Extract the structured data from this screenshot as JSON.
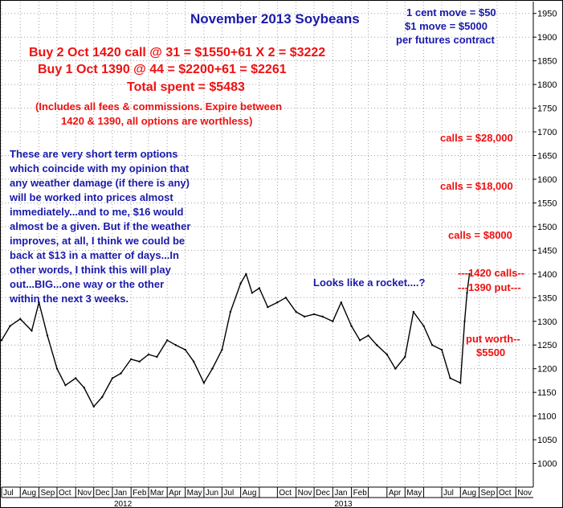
{
  "chart_data": {
    "type": "line",
    "title": "November 2013 Soybeans",
    "ylim": [
      950,
      1975
    ],
    "y_ticks": [
      1000,
      1050,
      1100,
      1150,
      1200,
      1250,
      1300,
      1350,
      1400,
      1450,
      1500,
      1550,
      1600,
      1650,
      1700,
      1750,
      1800,
      1850,
      1900,
      1950
    ],
    "x_months": [
      "Jul",
      "Aug",
      "Sep",
      "Oct",
      "Nov",
      "Dec",
      "Jan",
      "Feb",
      "Mar",
      "Apr",
      "May",
      "Jun",
      "Jul",
      "Aug",
      "Oct",
      "Nov",
      "Dec",
      "Jan",
      "Feb",
      "Apr",
      "May",
      "Jul",
      "Aug",
      "Sep",
      "Oct",
      "Nov"
    ],
    "x_years": [
      "2012",
      "2013"
    ],
    "grid": true,
    "series": [
      {
        "color": "#000000",
        "x": [
          "2011-07-01",
          "2011-07-15",
          "2011-08-01",
          "2011-08-20",
          "2011-09-01",
          "2011-09-15",
          "2011-10-01",
          "2011-10-15",
          "2011-11-01",
          "2011-11-15",
          "2011-12-01",
          "2011-12-15",
          "2012-01-01",
          "2012-01-15",
          "2012-02-01",
          "2012-02-15",
          "2012-03-01",
          "2012-03-15",
          "2012-04-01",
          "2012-04-15",
          "2012-05-01",
          "2012-05-15",
          "2012-06-01",
          "2012-06-15",
          "2012-07-01",
          "2012-07-15",
          "2012-08-01",
          "2012-08-10",
          "2012-08-20",
          "2012-09-01",
          "2012-09-15",
          "2012-10-01",
          "2012-10-15",
          "2012-11-01",
          "2012-11-15",
          "2012-12-01",
          "2012-12-15",
          "2013-01-01",
          "2013-01-15",
          "2013-02-01",
          "2013-02-15",
          "2013-03-01",
          "2013-03-15",
          "2013-04-01",
          "2013-04-15",
          "2013-05-01",
          "2013-05-15",
          "2013-06-01",
          "2013-06-15",
          "2013-07-01",
          "2013-07-15",
          "2013-08-01",
          "2013-08-08",
          "2013-08-12",
          "2013-08-16"
        ],
        "y": [
          1260,
          1290,
          1305,
          1280,
          1340,
          1270,
          1200,
          1165,
          1180,
          1160,
          1120,
          1140,
          1180,
          1190,
          1220,
          1215,
          1230,
          1225,
          1260,
          1250,
          1240,
          1215,
          1170,
          1200,
          1240,
          1320,
          1380,
          1400,
          1360,
          1370,
          1330,
          1340,
          1350,
          1320,
          1310,
          1315,
          1310,
          1300,
          1340,
          1290,
          1260,
          1270,
          1250,
          1230,
          1200,
          1225,
          1320,
          1290,
          1250,
          1240,
          1180,
          1170,
          1300,
          1360,
          1400
        ]
      }
    ]
  },
  "annotations": {
    "contract_note": [
      "1 cent move = $50",
      "$1 move = $5000",
      "per futures contract"
    ],
    "trade_lines": [
      "Buy 2 Oct 1420 call @ 31 = $1550+61 X 2 = $3222",
      "Buy 1 Oct 1390 @ 44 = $2200+61 = $2261",
      "Total spent  = $5483"
    ],
    "fee_note": [
      "(Includes all fees & commissions. Expire between",
      "1420 & 1390, all options are worthless)"
    ],
    "commentary": [
      "These are very short term options",
      "which coincide with my opinion that",
      "any weather damage (if there is any)",
      "will be worked into prices almost",
      "immediately...and to me, $16 would",
      "almost be a given. But if the weather",
      "improves, at all, I think we could be",
      "back at $13 in a matter of days...In",
      "other words, I think this will play",
      "out...BIG...one way or the other",
      "within the next 3 weeks."
    ],
    "calls_28000": "calls = $28,000",
    "calls_18000": "calls = $18,000",
    "calls_8000": "calls = $8000",
    "rocket": "Looks like a rocket....?",
    "calls_1420": "---1420 calls--",
    "put_1390": "---1390 put---",
    "put_worth": [
      "put worth--",
      "$5500"
    ]
  },
  "colors": {
    "title": "#1a1aaa",
    "red_text": "#ee1111",
    "grid": "#a0a0a0",
    "price": "#000000"
  }
}
